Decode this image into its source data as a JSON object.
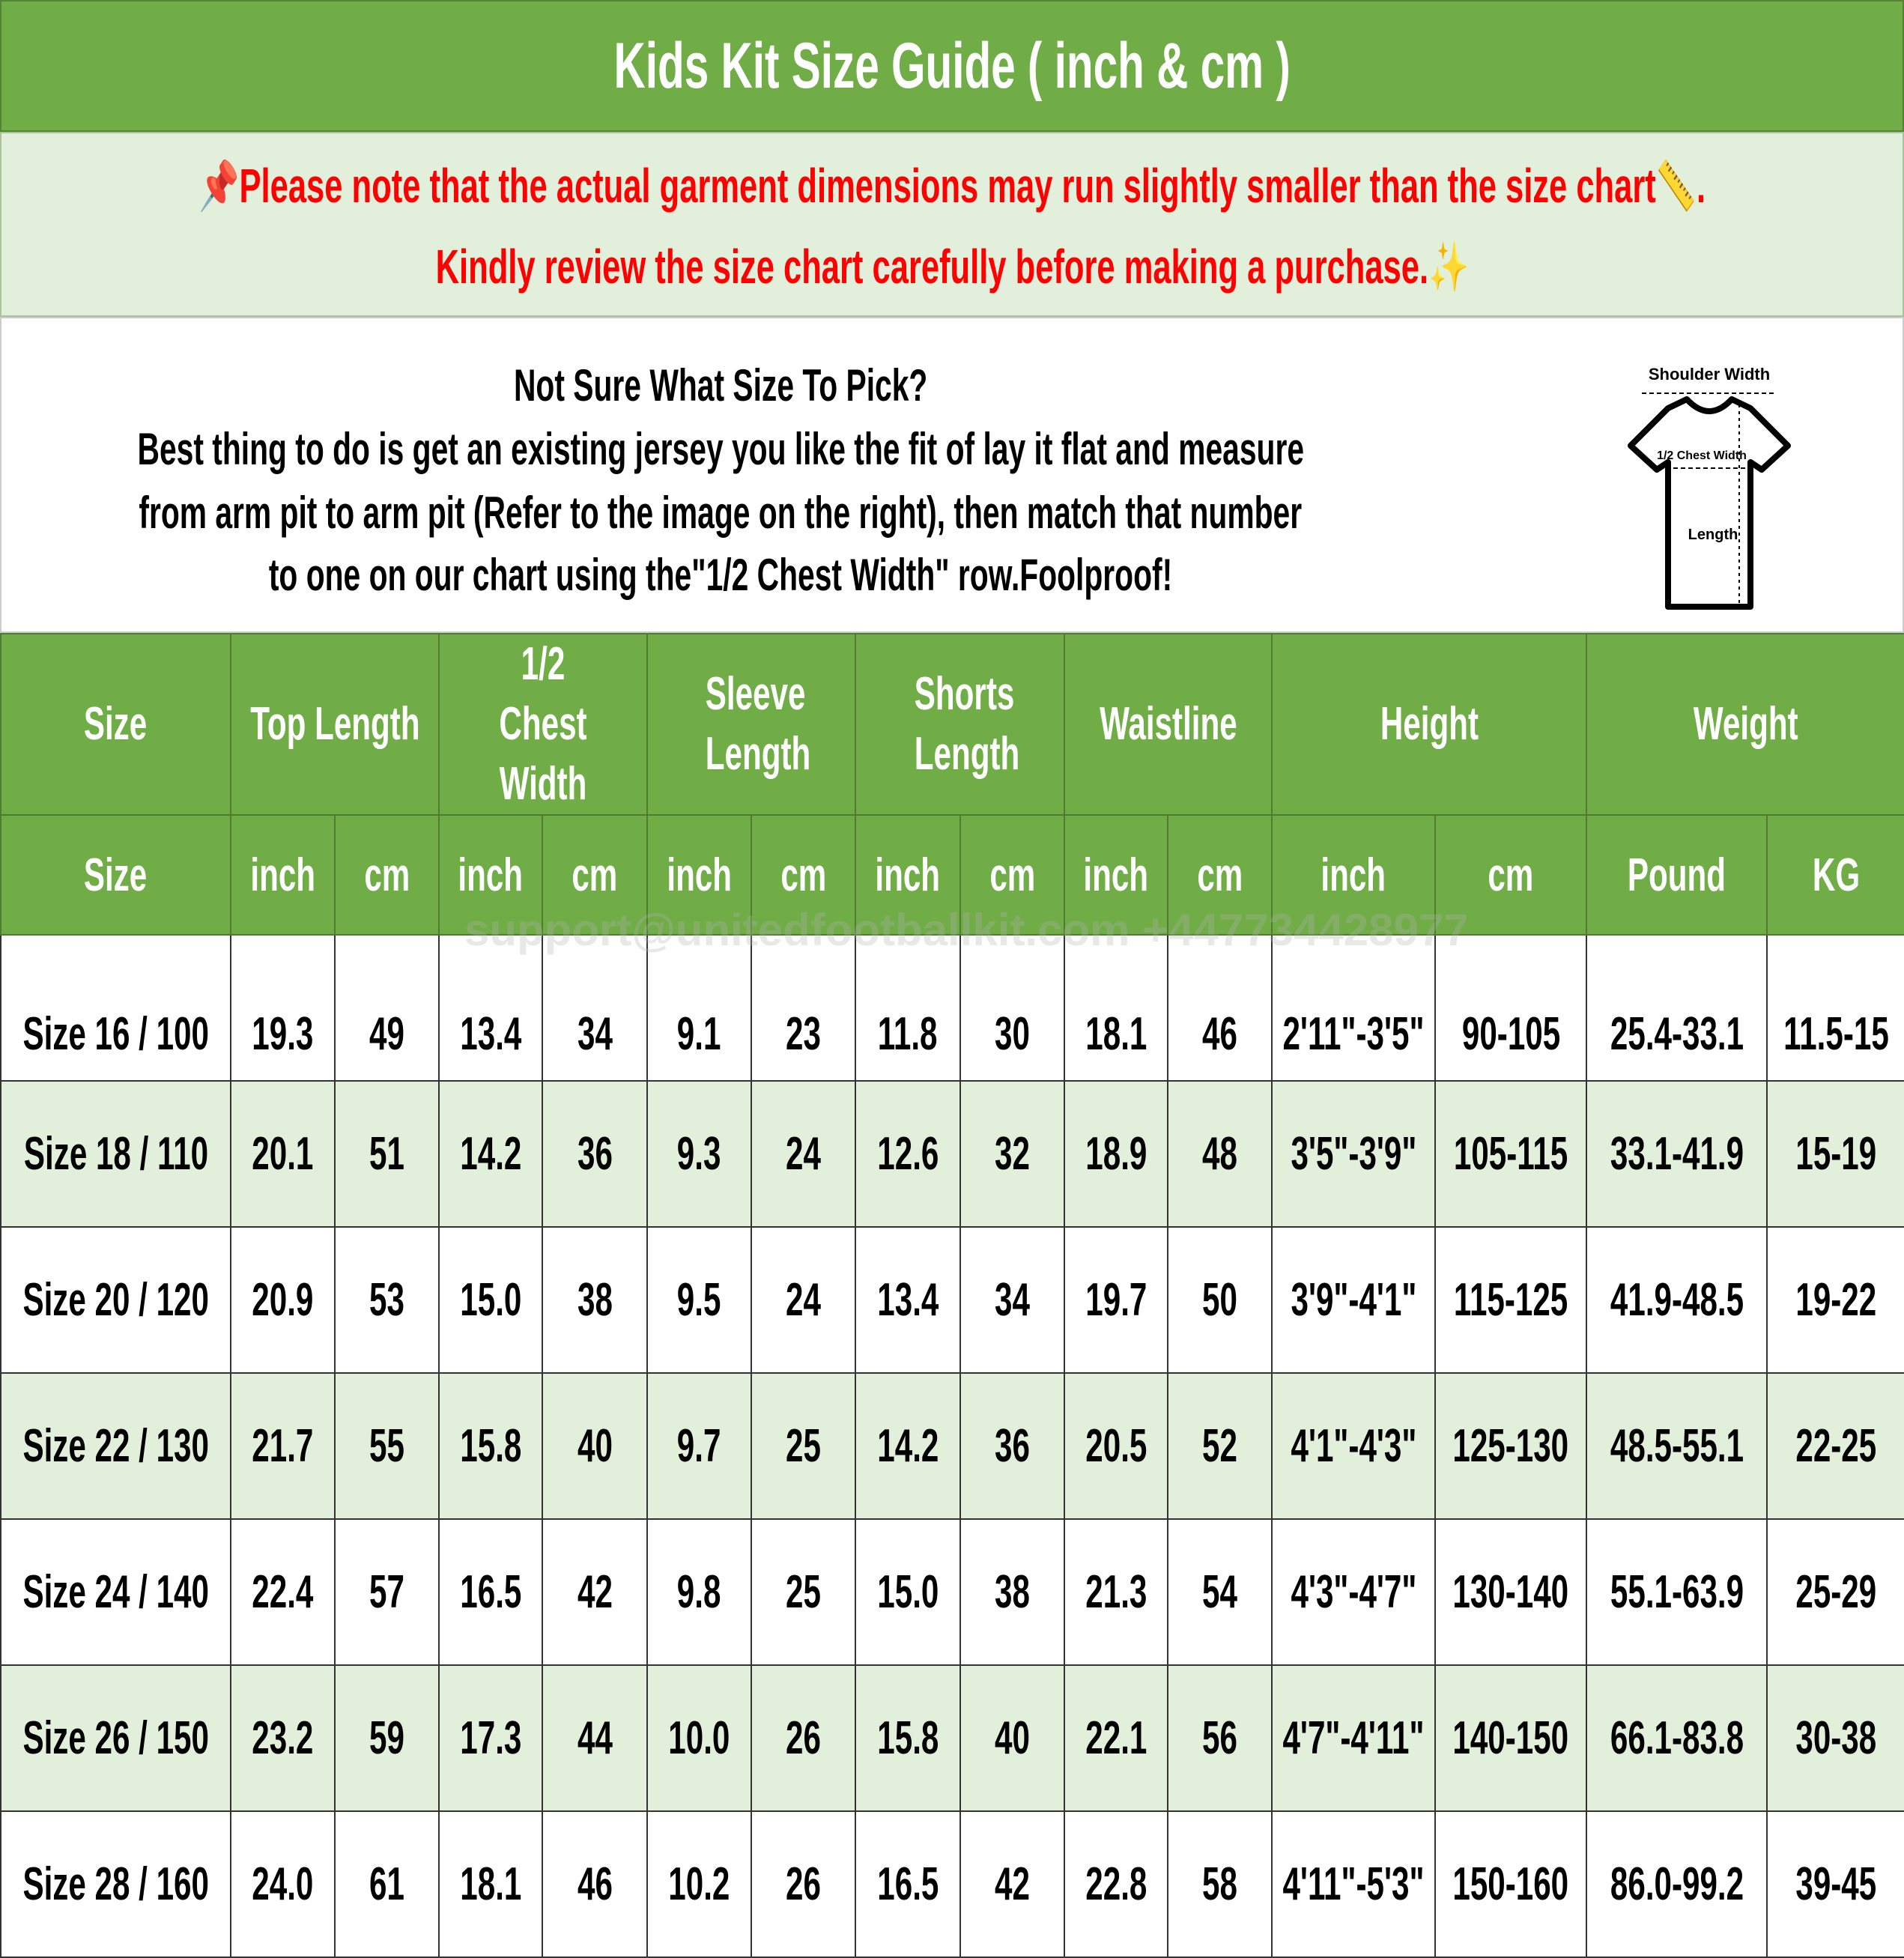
{
  "title": "Kids Kit Size Guide ( inch & cm )",
  "notice": {
    "line1": "Please note that the actual garment dimensions may run slightly smaller than the size chart",
    "line1_end": ".",
    "line2": "Kindly review the size chart carefully before making a purchase.",
    "icons": [
      "pushpin-icon",
      "ruler-icon",
      "sparkles-icon"
    ],
    "color": "#ff0000"
  },
  "info": {
    "heading": "Not Sure What Size To Pick?",
    "lines": [
      "Best thing to do is get an existing jersey you like the fit of lay it flat and measure",
      "from arm pit to arm pit (Refer to the image on the right), then match that number",
      "to one on our chart using the\"1/2 Chest Width\" row.Foolproof!"
    ],
    "diagram": {
      "shoulder": "Shoulder Width",
      "chest": "1/2 Chest Width",
      "length": "Length"
    }
  },
  "watermark": "support@unitedfootballkit.com +447734428977",
  "colors": {
    "header": "#70ad47",
    "stripe": "#e2efda"
  },
  "table": {
    "groups": [
      "Size",
      "Top Length",
      "1/2 Chest Width",
      "Sleeve Length",
      "Shorts Length",
      "Waistline",
      "Height",
      "Weight"
    ],
    "units": [
      "Size",
      "inch",
      "cm",
      "inch",
      "cm",
      "inch",
      "cm",
      "inch",
      "cm",
      "inch",
      "cm",
      "inch",
      "cm",
      "Pound",
      "KG"
    ],
    "rows": [
      [
        "Size 16 / 100",
        "19.3",
        "49",
        "13.4",
        "34",
        "9.1",
        "23",
        "11.8",
        "30",
        "18.1",
        "46",
        "2'11\"-3'5\"",
        "90-105",
        "25.4-33.1",
        "11.5-15"
      ],
      [
        "Size 18 / 110",
        "20.1",
        "51",
        "14.2",
        "36",
        "9.3",
        "24",
        "12.6",
        "32",
        "18.9",
        "48",
        "3'5\"-3'9\"",
        "105-115",
        "33.1-41.9",
        "15-19"
      ],
      [
        "Size 20 / 120",
        "20.9",
        "53",
        "15.0",
        "38",
        "9.5",
        "24",
        "13.4",
        "34",
        "19.7",
        "50",
        "3'9\"-4'1\"",
        "115-125",
        "41.9-48.5",
        "19-22"
      ],
      [
        "Size 22 / 130",
        "21.7",
        "55",
        "15.8",
        "40",
        "9.7",
        "25",
        "14.2",
        "36",
        "20.5",
        "52",
        "4'1\"-4'3\"",
        "125-130",
        "48.5-55.1",
        "22-25"
      ],
      [
        "Size 24 / 140",
        "22.4",
        "57",
        "16.5",
        "42",
        "9.8",
        "25",
        "15.0",
        "38",
        "21.3",
        "54",
        "4'3\"-4'7\"",
        "130-140",
        "55.1-63.9",
        "25-29"
      ],
      [
        "Size 26 / 150",
        "23.2",
        "59",
        "17.3",
        "44",
        "10.0",
        "26",
        "15.8",
        "40",
        "22.1",
        "56",
        "4'7\"-4'11\"",
        "140-150",
        "66.1-83.8",
        "30-38"
      ],
      [
        "Size 28 / 160",
        "24.0",
        "61",
        "18.1",
        "46",
        "10.2",
        "26",
        "16.5",
        "42",
        "22.8",
        "58",
        "4'11\"-5'3\"",
        "150-160",
        "86.0-99.2",
        "39-45"
      ]
    ]
  }
}
